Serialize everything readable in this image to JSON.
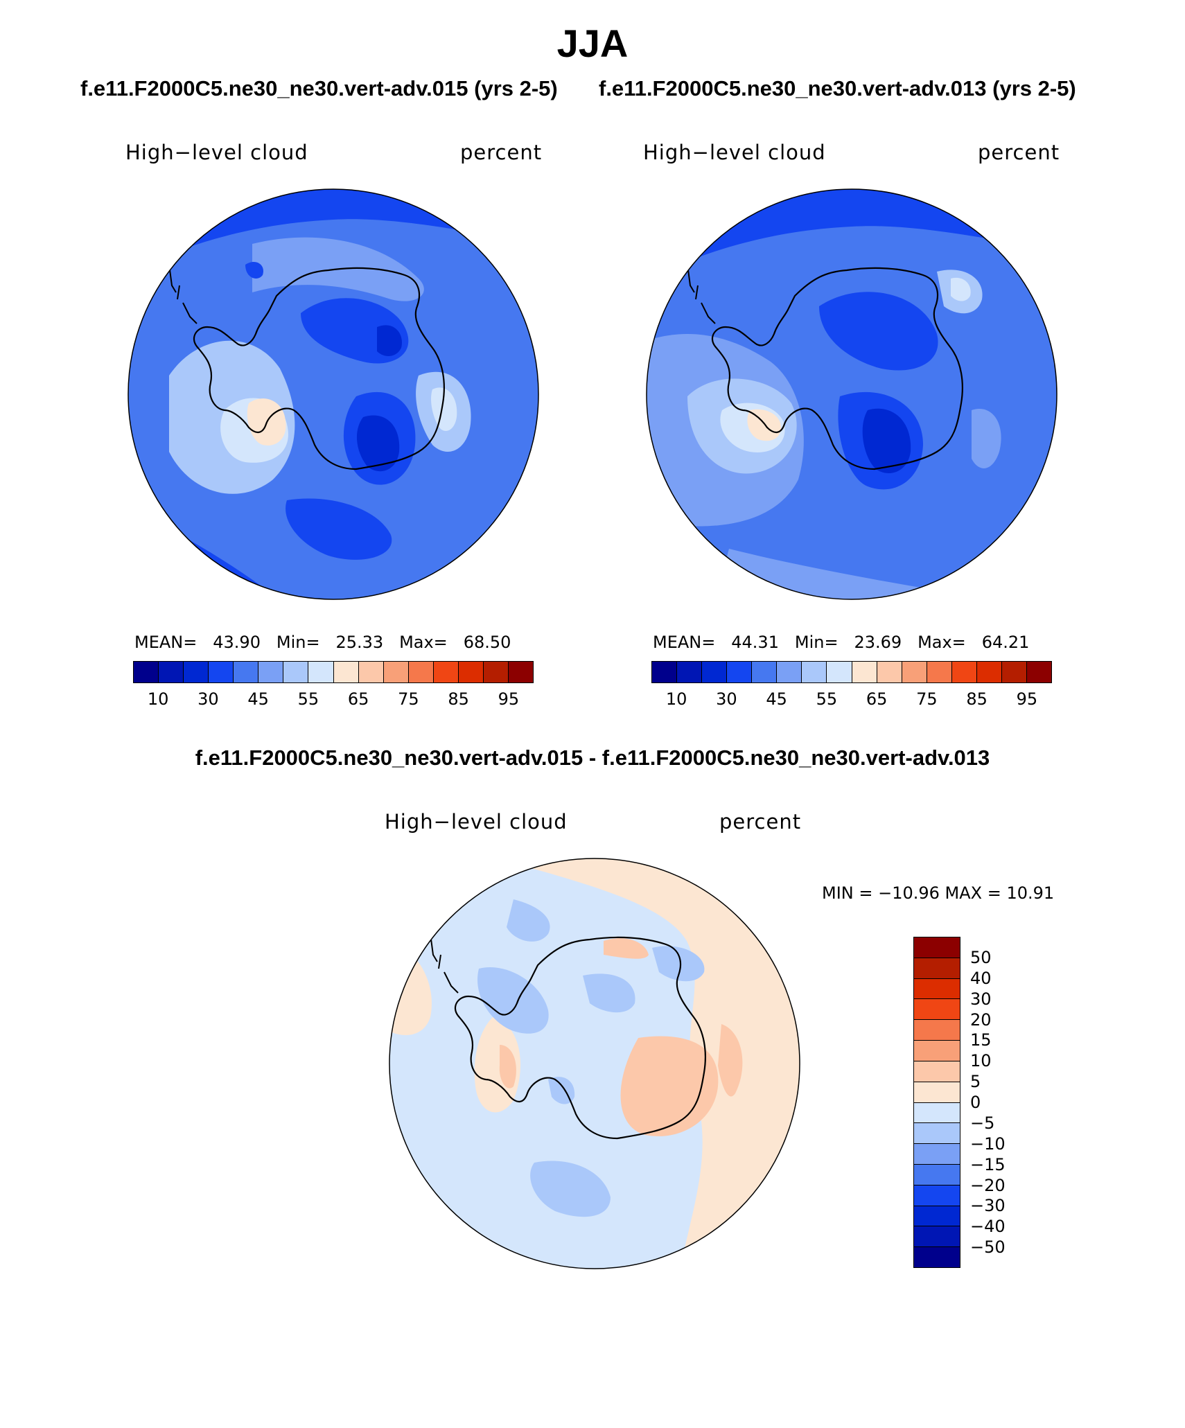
{
  "figure": {
    "season": "JJA",
    "case1_title": "f.e11.F2000C5.ne30_ne30.vert-adv.015 (yrs 2-5)",
    "case2_title": "f.e11.F2000C5.ne30_ne30.vert-adv.013 (yrs 2-5)",
    "diff_title": "f.e11.F2000C5.ne30_ne30.vert-adv.015 - f.e11.F2000C5.ne30_ne30.vert-adv.013"
  },
  "panels": [
    {
      "variable": "High−level cloud",
      "units": "percent",
      "mean_label": "MEAN=",
      "mean": "43.90",
      "min_label": "Min=",
      "min": "25.33",
      "max_label": "Max=",
      "max": "68.50"
    },
    {
      "variable": "High−level cloud",
      "units": "percent",
      "mean_label": "MEAN=",
      "mean": "44.31",
      "min_label": "Min=",
      "min": "23.69",
      "max_label": "Max=",
      "max": "64.21"
    }
  ],
  "diff_panel": {
    "variable": "High−level cloud",
    "units": "percent",
    "stats": "MIN = −10.96 MAX =   10.91"
  },
  "colorbar_abs": {
    "colors": [
      "#00008c",
      "#0016b4",
      "#0028d2",
      "#1446f0",
      "#4678f0",
      "#7aa0f5",
      "#aac8fa",
      "#d4e6fc",
      "#fce6d2",
      "#fcc8aa",
      "#f8a078",
      "#f5784b",
      "#f04614",
      "#dc2d00",
      "#b41e00",
      "#8c0000"
    ],
    "tick_labels": [
      "10",
      "30",
      "45",
      "55",
      "65",
      "75",
      "85",
      "95"
    ]
  },
  "colorbar_diff": {
    "colors_top_to_bottom": [
      "#8c0000",
      "#b41e00",
      "#dc2d00",
      "#f04614",
      "#f5784b",
      "#f8a078",
      "#fcc8aa",
      "#fce6d2",
      "#d4e6fc",
      "#aac8fa",
      "#7aa0f5",
      "#4678f0",
      "#1446f0",
      "#0028d2",
      "#0016b4",
      "#00008c"
    ],
    "labels_top_to_bottom": [
      "50",
      "40",
      "30",
      "20",
      "15",
      "10",
      "5",
      "0",
      "−5",
      "−10",
      "−15",
      "−20",
      "−30",
      "−40",
      "−50"
    ]
  }
}
